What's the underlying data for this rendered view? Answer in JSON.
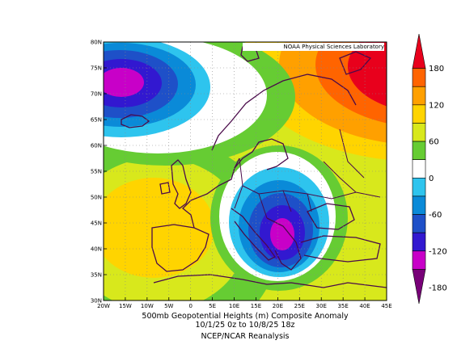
{
  "credit": "NOAA Physical Sciences Laboratory",
  "caption": {
    "line1": "500mb Geopotential Heights (m)    Composite Anomaly",
    "line2": "10/1/25 0z  to 10/8/25 18z",
    "line3": "NCEP/NCAR Reanalysis"
  },
  "axes": {
    "lon_labels": [
      "20W",
      "15W",
      "10W",
      "5W",
      "0",
      "5E",
      "10E",
      "15E",
      "20E",
      "25E",
      "30E",
      "35E",
      "40E",
      "45E"
    ],
    "lat_labels": [
      "80N",
      "75N",
      "70N",
      "65N",
      "60N",
      "55N",
      "50N",
      "45N",
      "40N",
      "35N",
      "30N"
    ]
  },
  "colorbar": {
    "labels": [
      "180",
      "120",
      "60",
      "0",
      "-60",
      "-120",
      "-180"
    ],
    "colors": [
      "#e8001c",
      "#ff6400",
      "#ffa000",
      "#ffd400",
      "#d8e81c",
      "#66cc33",
      "#ffffff",
      "#2ec4ee",
      "#0a8ad8",
      "#1e50c8",
      "#3218d0",
      "#c800c8",
      "#780078"
    ]
  },
  "chart_data": {
    "type": "heatmap",
    "title": "500mb Geopotential Heights (m)    Composite Anomaly",
    "lon_range": [
      -20,
      45
    ],
    "lat_range": [
      30,
      80
    ],
    "value_range": [
      -180,
      180
    ],
    "contour_interval": 30,
    "grid": true,
    "features": [
      {
        "name": "negative anomaly center",
        "lon": -16,
        "lat": 71,
        "value": -150
      },
      {
        "name": "negative anomaly center",
        "lon": 21,
        "lat": 41,
        "value": -165
      },
      {
        "name": "positive anomaly region",
        "lon": 44,
        "lat": 72,
        "value": 170
      },
      {
        "name": "positive anomaly region",
        "lon": -10,
        "lat": 46,
        "value": 100
      }
    ]
  }
}
